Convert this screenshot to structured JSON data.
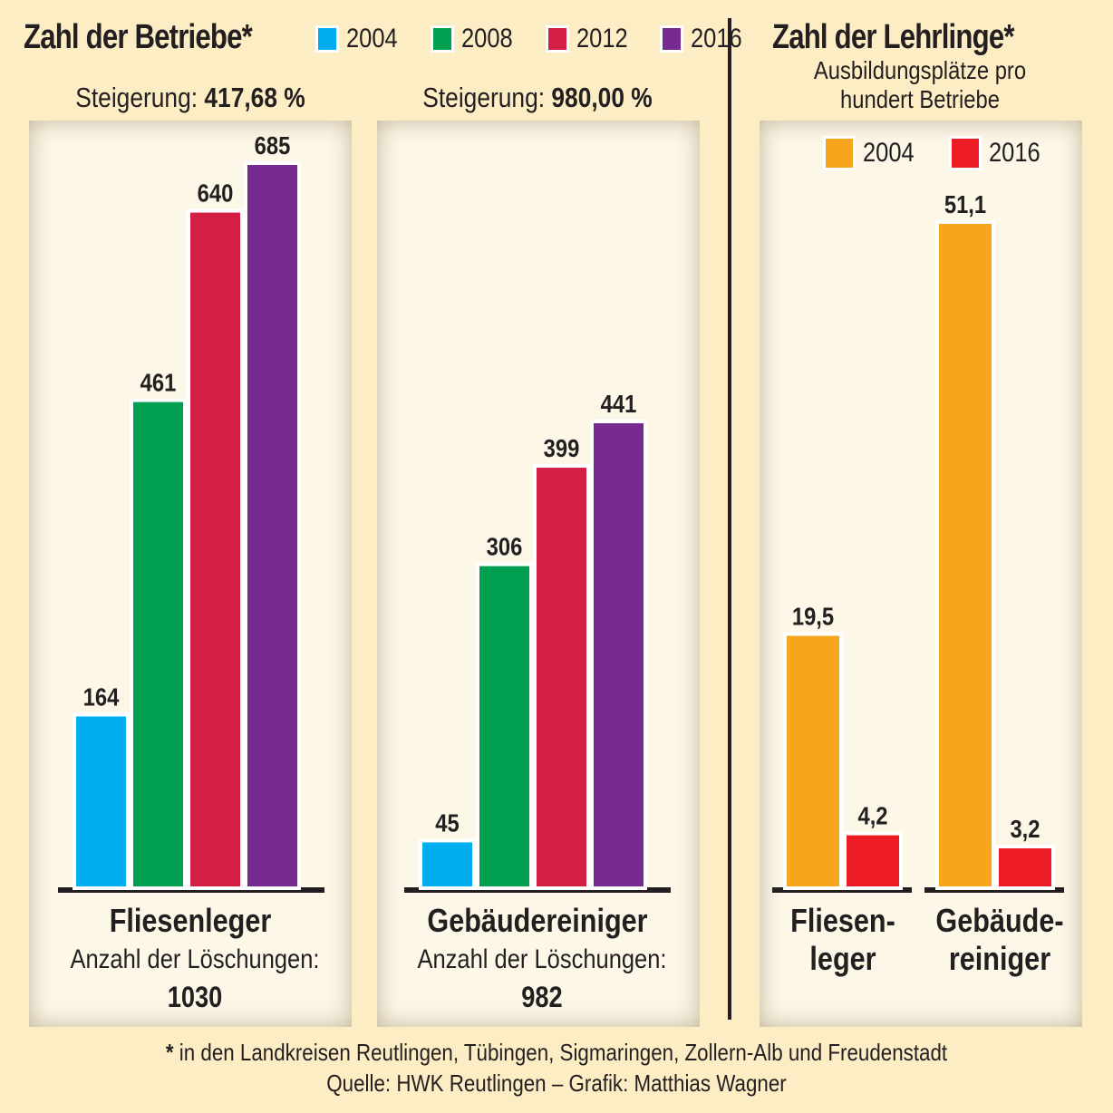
{
  "left_section": {
    "title": "Zahl der Betriebe*",
    "legend": [
      {
        "label": "2004",
        "color": "#00aeef"
      },
      {
        "label": "2008",
        "color": "#00a050"
      },
      {
        "label": "2012",
        "color": "#d41f45"
      },
      {
        "label": "2016",
        "color": "#772b90"
      }
    ],
    "panels": [
      {
        "increase_label": "Steigerung:",
        "increase_value": "417,68 %",
        "category": "Fliesenleger",
        "deletions_label": "Anzahl der Löschungen:",
        "deletions_value": "1030"
      },
      {
        "increase_label": "Steigerung:",
        "increase_value": "980,00 %",
        "category": "Gebäudereiniger",
        "deletions_label": "Anzahl der Löschungen:",
        "deletions_value": "982"
      }
    ]
  },
  "right_section": {
    "title": "Zahl der Lehrlinge*",
    "subtitle_line1": "Ausbildungsplätze pro",
    "subtitle_line2": "hundert Betriebe",
    "legend": [
      {
        "label": "2004",
        "color": "#f7a51c"
      },
      {
        "label": "2016",
        "color": "#ed1c24"
      }
    ],
    "categories": [
      {
        "line1": "Fliesen-",
        "line2": "leger"
      },
      {
        "line1": "Gebäude-",
        "line2": "reiniger"
      }
    ]
  },
  "footer": {
    "asterisk": "*",
    "note": " in den Landkreisen Reutlingen, Tübingen, Sigmaringen, Zollern-Alb und Freudenstadt",
    "source": "Quelle: HWK Reutlingen – Grafik: Matthias Wagner"
  },
  "chart_data": [
    {
      "type": "bar",
      "title": "Zahl der Betriebe",
      "categories": [
        "Fliesenleger",
        "Gebäudereiniger"
      ],
      "series": [
        {
          "name": "2004",
          "values": [
            164,
            45
          ],
          "labels": [
            "164",
            "45"
          ]
        },
        {
          "name": "2008",
          "values": [
            461,
            306
          ],
          "labels": [
            "461",
            "306"
          ]
        },
        {
          "name": "2012",
          "values": [
            640,
            399
          ],
          "labels": [
            "640",
            "399"
          ]
        },
        {
          "name": "2016",
          "values": [
            685,
            441
          ],
          "labels": [
            "685",
            "441"
          ]
        }
      ],
      "xlabel": "",
      "ylabel": "",
      "ylim": [
        0,
        685
      ],
      "legend": "top",
      "grid": false
    },
    {
      "type": "bar",
      "title": "Zahl der Lehrlinge – Ausbildungsplätze pro hundert Betriebe",
      "categories": [
        "Fliesenleger",
        "Gebäudereiniger"
      ],
      "series": [
        {
          "name": "2004",
          "values": [
            19.5,
            51.1
          ],
          "labels": [
            "19,5",
            "51,1"
          ]
        },
        {
          "name": "2016",
          "values": [
            4.2,
            3.2
          ],
          "labels": [
            "4,2",
            "3,2"
          ]
        }
      ],
      "xlabel": "",
      "ylabel": "",
      "ylim": [
        0,
        51.1
      ],
      "legend": "top",
      "grid": false
    }
  ]
}
